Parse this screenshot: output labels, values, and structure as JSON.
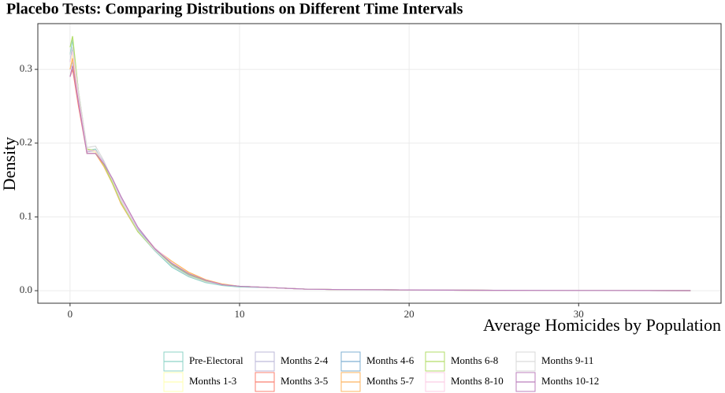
{
  "chart_data": {
    "type": "line",
    "title": "Placebo Tests: Comparing Distributions on Different Time Intervals",
    "x_label": "Average Homicides by Population",
    "y_label": "Density",
    "x": [
      0,
      0.15,
      0.5,
      1,
      1.5,
      2,
      2.5,
      3,
      4,
      5,
      6,
      7,
      8,
      9,
      10,
      12,
      14,
      16,
      20,
      25,
      30,
      36.6
    ],
    "xlim": [
      -1.9,
      38.4
    ],
    "xticks": [
      0,
      10,
      20,
      30
    ],
    "ylim": [
      -0.017,
      0.362
    ],
    "yticks": [
      {
        "value": 0,
        "label": "0.0"
      },
      0.1,
      0.2,
      0.3
    ],
    "grid": true,
    "series": [
      {
        "name": "Pre-Electoral",
        "color": "#8dd3c7",
        "values": [
          0.32,
          0.34,
          0.27,
          0.19,
          0.192,
          0.172,
          0.148,
          0.12,
          0.08,
          0.054,
          0.032,
          0.019,
          0.011,
          0.007,
          0.005,
          0.004,
          0.002,
          0.0015,
          0.001,
          0.0005,
          0.0003,
          0.0001
        ]
      },
      {
        "name": "Months 1-3",
        "color": "#ffffb3",
        "values": [
          0.3,
          0.32,
          0.26,
          0.19,
          0.188,
          0.17,
          0.148,
          0.122,
          0.084,
          0.058,
          0.038,
          0.024,
          0.014,
          0.008,
          0.006,
          0.004,
          0.002,
          0.0015,
          0.001,
          0.0005,
          0.0003,
          0.0001
        ]
      },
      {
        "name": "Months 2-4",
        "color": "#bebada",
        "values": [
          0.3,
          0.31,
          0.26,
          0.188,
          0.19,
          0.172,
          0.15,
          0.125,
          0.084,
          0.056,
          0.036,
          0.022,
          0.013,
          0.008,
          0.006,
          0.004,
          0.002,
          0.0015,
          0.001,
          0.0005,
          0.0003,
          0.0001
        ]
      },
      {
        "name": "Months 3-5",
        "color": "#fb8072",
        "values": [
          0.29,
          0.3,
          0.25,
          0.186,
          0.186,
          0.17,
          0.146,
          0.12,
          0.082,
          0.057,
          0.037,
          0.023,
          0.014,
          0.008,
          0.006,
          0.004,
          0.002,
          0.0015,
          0.001,
          0.0005,
          0.0003,
          0.0001
        ]
      },
      {
        "name": "Months 4-6",
        "color": "#80b1d3",
        "values": [
          0.31,
          0.33,
          0.265,
          0.19,
          0.19,
          0.174,
          0.15,
          0.124,
          0.083,
          0.056,
          0.035,
          0.021,
          0.013,
          0.008,
          0.006,
          0.004,
          0.002,
          0.0015,
          0.001,
          0.0005,
          0.0003,
          0.0001
        ]
      },
      {
        "name": "Months 5-7",
        "color": "#fdb462",
        "values": [
          0.3,
          0.315,
          0.26,
          0.186,
          0.186,
          0.168,
          0.145,
          0.118,
          0.08,
          0.057,
          0.04,
          0.025,
          0.015,
          0.009,
          0.006,
          0.004,
          0.002,
          0.0015,
          0.001,
          0.0005,
          0.0003,
          0.0001
        ]
      },
      {
        "name": "Months 6-8",
        "color": "#b3de69",
        "values": [
          0.33,
          0.345,
          0.27,
          0.192,
          0.19,
          0.17,
          0.146,
          0.12,
          0.08,
          0.055,
          0.036,
          0.022,
          0.013,
          0.008,
          0.006,
          0.004,
          0.002,
          0.0015,
          0.001,
          0.0005,
          0.0003,
          0.0001
        ]
      },
      {
        "name": "Months 8-10",
        "color": "#fccde5",
        "values": [
          0.31,
          0.325,
          0.26,
          0.19,
          0.19,
          0.173,
          0.15,
          0.124,
          0.085,
          0.058,
          0.038,
          0.023,
          0.014,
          0.008,
          0.006,
          0.004,
          0.002,
          0.0015,
          0.001,
          0.0005,
          0.0003,
          0.0001
        ]
      },
      {
        "name": "Months 9-11",
        "color": "#d9d9d9",
        "values": [
          0.32,
          0.33,
          0.27,
          0.194,
          0.196,
          0.176,
          0.15,
          0.122,
          0.082,
          0.055,
          0.034,
          0.02,
          0.012,
          0.008,
          0.006,
          0.004,
          0.002,
          0.0015,
          0.001,
          0.0005,
          0.0003,
          0.0001
        ]
      },
      {
        "name": "Months 10-12",
        "color": "#bc80bd",
        "values": [
          0.29,
          0.305,
          0.255,
          0.186,
          0.186,
          0.172,
          0.152,
          0.128,
          0.086,
          0.057,
          0.037,
          0.023,
          0.014,
          0.008,
          0.006,
          0.004,
          0.002,
          0.0015,
          0.001,
          0.0005,
          0.0003,
          0.0001
        ]
      }
    ]
  }
}
